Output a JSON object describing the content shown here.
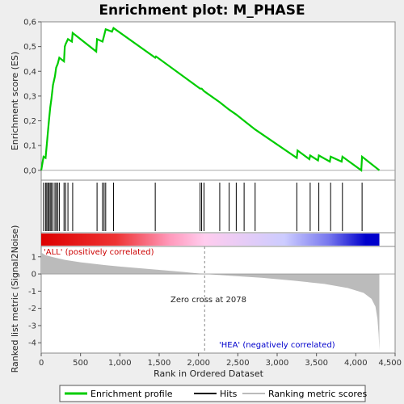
{
  "chart_data": {
    "type": "line",
    "title": "Enrichment plot: M_PHASE",
    "xlabel": "Rank in Ordered Dataset",
    "ylabel_top": "Enrichment score (ES)",
    "ylabel_bottom": "Ranked list metric (Signal2Noise)",
    "x_ticks": [
      "0",
      "500",
      "1,000",
      "1,500",
      "2,000",
      "2,500",
      "3,000",
      "3,500",
      "4,000",
      "4,500"
    ],
    "x_tick_values": [
      0,
      500,
      1000,
      1500,
      2000,
      2500,
      3000,
      3500,
      4000,
      4500
    ],
    "xlim": [
      0,
      4500
    ],
    "es_ylim": [
      -0.04,
      0.6
    ],
    "es_y_ticks": [
      "0,0",
      "0,1",
      "0,2",
      "0,3",
      "0,4",
      "0,5",
      "0,6"
    ],
    "es_y_tick_values": [
      0.0,
      0.1,
      0.2,
      0.3,
      0.4,
      0.5,
      0.6
    ],
    "metric_ylim": [
      -4.6,
      1.6
    ],
    "metric_y_ticks": [
      "1",
      "0",
      "-1",
      "-2",
      "-3",
      "-4"
    ],
    "metric_y_tick_values": [
      1,
      0,
      -1,
      -2,
      -3,
      -4
    ],
    "hits": [
      30,
      55,
      70,
      85,
      100,
      115,
      130,
      150,
      175,
      190,
      210,
      230,
      290,
      310,
      340,
      400,
      710,
      780,
      800,
      820,
      920,
      1450,
      2020,
      2040,
      2070,
      2270,
      2390,
      2480,
      2580,
      2720,
      3250,
      3420,
      3530,
      3680,
      3830,
      4080
    ],
    "es_curve": [
      [
        0,
        0.0
      ],
      [
        30,
        0.055
      ],
      [
        55,
        0.05
      ],
      [
        70,
        0.1
      ],
      [
        85,
        0.155
      ],
      [
        100,
        0.205
      ],
      [
        115,
        0.255
      ],
      [
        130,
        0.29
      ],
      [
        150,
        0.345
      ],
      [
        175,
        0.38
      ],
      [
        190,
        0.415
      ],
      [
        210,
        0.43
      ],
      [
        230,
        0.455
      ],
      [
        290,
        0.44
      ],
      [
        300,
        0.5
      ],
      [
        310,
        0.51
      ],
      [
        340,
        0.53
      ],
      [
        390,
        0.52
      ],
      [
        400,
        0.555
      ],
      [
        700,
        0.48
      ],
      [
        710,
        0.53
      ],
      [
        780,
        0.52
      ],
      [
        800,
        0.545
      ],
      [
        820,
        0.57
      ],
      [
        900,
        0.56
      ],
      [
        920,
        0.575
      ],
      [
        1450,
        0.455
      ],
      [
        1460,
        0.46
      ],
      [
        2020,
        0.33
      ],
      [
        2040,
        0.33
      ],
      [
        2070,
        0.32
      ],
      [
        2270,
        0.275
      ],
      [
        2390,
        0.245
      ],
      [
        2480,
        0.225
      ],
      [
        2580,
        0.2
      ],
      [
        2720,
        0.165
      ],
      [
        3250,
        0.05
      ],
      [
        3260,
        0.08
      ],
      [
        3410,
        0.045
      ],
      [
        3420,
        0.06
      ],
      [
        3520,
        0.04
      ],
      [
        3530,
        0.06
      ],
      [
        3670,
        0.035
      ],
      [
        3680,
        0.055
      ],
      [
        3820,
        0.035
      ],
      [
        3830,
        0.055
      ],
      [
        4070,
        0.0
      ],
      [
        4080,
        0.055
      ],
      [
        4300,
        0.0
      ]
    ],
    "metric_profile": [
      [
        0,
        1.25
      ],
      [
        50,
        1.1
      ],
      [
        150,
        0.98
      ],
      [
        300,
        0.82
      ],
      [
        500,
        0.68
      ],
      [
        800,
        0.52
      ],
      [
        1000,
        0.43
      ],
      [
        1500,
        0.24
      ],
      [
        1800,
        0.12
      ],
      [
        2078,
        0.0
      ],
      [
        2400,
        -0.1
      ],
      [
        2800,
        -0.22
      ],
      [
        3200,
        -0.38
      ],
      [
        3600,
        -0.58
      ],
      [
        3900,
        -0.82
      ],
      [
        4100,
        -1.1
      ],
      [
        4200,
        -1.45
      ],
      [
        4250,
        -1.9
      ],
      [
        4275,
        -2.6
      ],
      [
        4290,
        -3.5
      ],
      [
        4300,
        -4.45
      ]
    ],
    "zero_cross": 2078,
    "annotation_pos": "'ALL' (positively correlated)",
    "annotation_neg": "'HEA' (negatively correlated)",
    "annotation_zero": "Zero cross at 2078",
    "legend": {
      "placement": "bottom",
      "items": [
        "Enrichment profile",
        "Hits",
        "Ranking metric scores"
      ]
    },
    "colors": {
      "enrichment_line": "#00cc00",
      "hits": "#000000",
      "metric_fill": "#bbbbbb",
      "zero_line": "#888888",
      "bar_positive": "#dd0000",
      "bar_mid": "#ffccee",
      "bar_negative": "#0000cc"
    }
  }
}
